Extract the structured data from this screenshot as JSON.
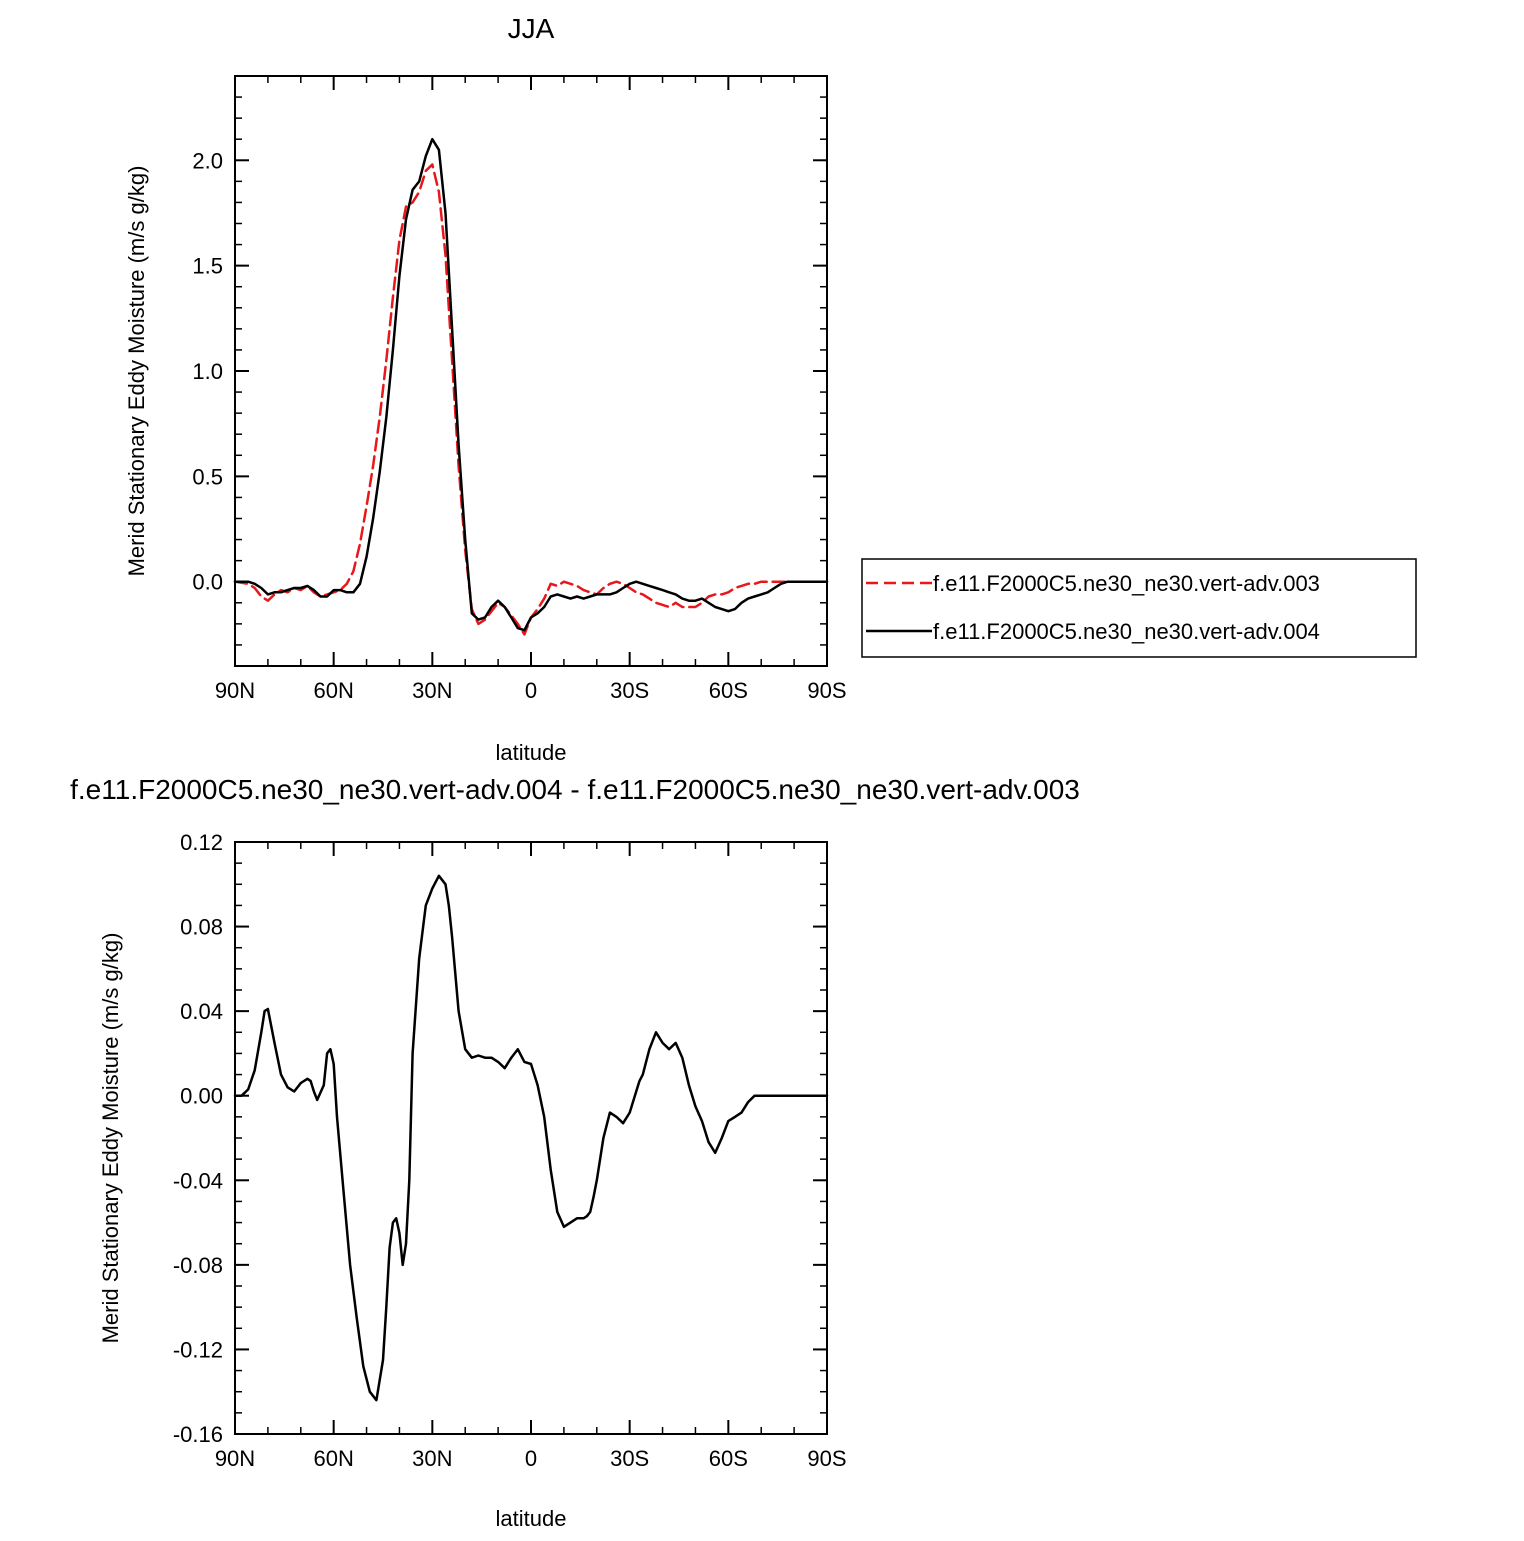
{
  "chart_data": [
    {
      "type": "line",
      "title": "JJA",
      "xlabel": "latitude",
      "ylabel": "Merid Stationary Eddy Moisture (m/s g/kg)",
      "xlim": [
        90,
        -90
      ],
      "ylim": [
        -0.4,
        2.4
      ],
      "xticks": [
        {
          "value": 90,
          "label": "90N"
        },
        {
          "value": 60,
          "label": "60N"
        },
        {
          "value": 30,
          "label": "30N"
        },
        {
          "value": 0,
          "label": "0"
        },
        {
          "value": -30,
          "label": "30S"
        },
        {
          "value": -60,
          "label": "60S"
        },
        {
          "value": -90,
          "label": "90S"
        }
      ],
      "yticks": [
        {
          "value": 0.0,
          "label": "0.0"
        },
        {
          "value": 0.5,
          "label": "0.5"
        },
        {
          "value": 1.0,
          "label": "1.0"
        },
        {
          "value": 1.5,
          "label": "1.5"
        },
        {
          "value": 2.0,
          "label": "2.0"
        }
      ],
      "legend": "right",
      "series": [
        {
          "name": "f.e11.F2000C5.ne30_ne30.vert-adv.003",
          "color": "#e8171b",
          "dash": "dashed",
          "x": [
            90,
            86,
            84,
            82,
            80,
            78,
            76,
            74,
            72,
            70,
            68,
            66,
            64,
            62,
            60,
            58,
            56,
            54,
            52,
            50,
            48,
            46,
            44,
            42,
            40,
            38,
            36,
            34,
            32,
            30,
            28,
            26,
            24,
            22,
            20,
            18,
            16,
            14,
            12,
            10,
            8,
            6,
            4,
            2,
            0,
            -2,
            -4,
            -6,
            -8,
            -10,
            -12,
            -14,
            -16,
            -18,
            -20,
            -22,
            -24,
            -26,
            -28,
            -30,
            -32,
            -34,
            -36,
            -38,
            -40,
            -42,
            -44,
            -46,
            -48,
            -50,
            -52,
            -54,
            -56,
            -58,
            -60,
            -62,
            -64,
            -66,
            -68,
            -70,
            -72,
            -74,
            -76,
            -78,
            -80,
            -82,
            -84,
            -86,
            -88,
            -90
          ],
          "y": [
            0.0,
            -0.01,
            -0.03,
            -0.07,
            -0.09,
            -0.06,
            -0.04,
            -0.05,
            -0.03,
            -0.04,
            -0.02,
            -0.05,
            -0.07,
            -0.06,
            -0.05,
            -0.04,
            -0.01,
            0.05,
            0.18,
            0.36,
            0.55,
            0.78,
            1.05,
            1.35,
            1.62,
            1.78,
            1.8,
            1.85,
            1.95,
            1.98,
            1.85,
            1.55,
            1.05,
            0.55,
            0.15,
            -0.13,
            -0.2,
            -0.18,
            -0.14,
            -0.1,
            -0.12,
            -0.16,
            -0.2,
            -0.25,
            -0.17,
            -0.13,
            -0.08,
            -0.01,
            -0.02,
            0.0,
            -0.01,
            -0.02,
            -0.04,
            -0.05,
            -0.06,
            -0.03,
            -0.01,
            0.0,
            -0.01,
            -0.03,
            -0.05,
            -0.06,
            -0.08,
            -0.1,
            -0.11,
            -0.12,
            -0.1,
            -0.12,
            -0.12,
            -0.12,
            -0.1,
            -0.07,
            -0.06,
            -0.06,
            -0.05,
            -0.03,
            -0.02,
            -0.01,
            -0.01,
            0.0,
            0.0,
            0.0,
            0.0,
            0.0,
            0.0,
            0.0,
            0.0,
            0.0,
            0.0,
            0.0
          ]
        },
        {
          "name": "f.e11.F2000C5.ne30_ne30.vert-adv.004",
          "color": "#000000",
          "dash": "solid",
          "x": [
            90,
            86,
            84,
            82,
            80,
            78,
            76,
            74,
            72,
            70,
            68,
            66,
            64,
            62,
            60,
            58,
            56,
            54,
            52,
            50,
            48,
            46,
            44,
            42,
            40,
            38,
            36,
            34,
            32,
            30,
            28,
            26,
            24,
            22,
            20,
            18,
            16,
            14,
            12,
            10,
            8,
            6,
            4,
            2,
            0,
            -2,
            -4,
            -6,
            -8,
            -10,
            -12,
            -14,
            -16,
            -18,
            -20,
            -22,
            -24,
            -26,
            -28,
            -30,
            -32,
            -34,
            -36,
            -38,
            -40,
            -42,
            -44,
            -46,
            -48,
            -50,
            -52,
            -54,
            -56,
            -58,
            -60,
            -62,
            -64,
            -66,
            -68,
            -70,
            -72,
            -74,
            -76,
            -78,
            -80,
            -82,
            -84,
            -86,
            -88,
            -90
          ],
          "y": [
            0.0,
            0.0,
            -0.01,
            -0.03,
            -0.06,
            -0.05,
            -0.05,
            -0.04,
            -0.03,
            -0.03,
            -0.02,
            -0.04,
            -0.07,
            -0.07,
            -0.04,
            -0.04,
            -0.05,
            -0.05,
            -0.01,
            0.12,
            0.3,
            0.52,
            0.78,
            1.1,
            1.45,
            1.72,
            1.86,
            1.9,
            2.02,
            2.1,
            2.05,
            1.75,
            1.2,
            0.65,
            0.2,
            -0.15,
            -0.18,
            -0.17,
            -0.12,
            -0.09,
            -0.12,
            -0.17,
            -0.22,
            -0.23,
            -0.17,
            -0.15,
            -0.12,
            -0.07,
            -0.06,
            -0.07,
            -0.08,
            -0.07,
            -0.08,
            -0.07,
            -0.06,
            -0.06,
            -0.06,
            -0.05,
            -0.03,
            -0.01,
            0.0,
            -0.01,
            -0.02,
            -0.03,
            -0.04,
            -0.05,
            -0.06,
            -0.08,
            -0.09,
            -0.09,
            -0.08,
            -0.1,
            -0.12,
            -0.13,
            -0.14,
            -0.13,
            -0.1,
            -0.08,
            -0.07,
            -0.06,
            -0.05,
            -0.03,
            -0.01,
            0.0,
            0.0,
            0.0,
            0.0,
            0.0,
            0.0,
            0.0
          ]
        }
      ]
    },
    {
      "type": "line",
      "title": "f.e11.F2000C5.ne30_ne30.vert-adv.004 - f.e11.F2000C5.ne30_ne30.vert-adv.003",
      "xlabel": "latitude",
      "ylabel": "Merid Stationary Eddy Moisture (m/s g/kg)",
      "xlim": [
        90,
        -90
      ],
      "ylim": [
        -0.16,
        0.12
      ],
      "xticks": [
        {
          "value": 90,
          "label": "90N"
        },
        {
          "value": 60,
          "label": "60N"
        },
        {
          "value": 30,
          "label": "30N"
        },
        {
          "value": 0,
          "label": "0"
        },
        {
          "value": -30,
          "label": "30S"
        },
        {
          "value": -60,
          "label": "60S"
        },
        {
          "value": -90,
          "label": "90S"
        }
      ],
      "yticks": [
        {
          "value": 0.12,
          "label": "0.12"
        },
        {
          "value": 0.08,
          "label": "0.08"
        },
        {
          "value": 0.04,
          "label": "0.04"
        },
        {
          "value": 0.0,
          "label": "0.00"
        },
        {
          "value": -0.04,
          "label": "-0.04"
        },
        {
          "value": -0.08,
          "label": "-0.08"
        },
        {
          "value": -0.12,
          "label": "-0.12"
        },
        {
          "value": -0.16,
          "label": "-0.16"
        }
      ],
      "series": [
        {
          "color": "#000000",
          "dash": "solid",
          "x": [
            90,
            88,
            86,
            84,
            82,
            81,
            80,
            78,
            76,
            74,
            72,
            70,
            68,
            67,
            66,
            65,
            63,
            62,
            61,
            60,
            59,
            57,
            55,
            53,
            51,
            49,
            47,
            45,
            44,
            43,
            42,
            41,
            40,
            39,
            38,
            37,
            36,
            34,
            32,
            30,
            28,
            26,
            25,
            24,
            22,
            20,
            18,
            16,
            14,
            12,
            10,
            8,
            6,
            4,
            2,
            0,
            -2,
            -4,
            -6,
            -8,
            -10,
            -12,
            -14,
            -16,
            -17,
            -18,
            -19,
            -20,
            -22,
            -24,
            -26,
            -28,
            -30,
            -32,
            -33,
            -34,
            -36,
            -38,
            -40,
            -42,
            -44,
            -46,
            -48,
            -50,
            -52,
            -54,
            -56,
            -58,
            -60,
            -62,
            -64,
            -66,
            -68,
            -70,
            -72,
            -74,
            -75,
            -76,
            -78,
            -80,
            -82,
            -84,
            -86,
            -88,
            -90
          ],
          "y": [
            0.0,
            0.0,
            0.003,
            0.012,
            0.03,
            0.04,
            0.041,
            0.025,
            0.01,
            0.004,
            0.002,
            0.006,
            0.008,
            0.007,
            0.002,
            -0.002,
            0.005,
            0.02,
            0.022,
            0.015,
            -0.01,
            -0.045,
            -0.08,
            -0.105,
            -0.128,
            -0.14,
            -0.144,
            -0.125,
            -0.1,
            -0.072,
            -0.06,
            -0.058,
            -0.065,
            -0.08,
            -0.07,
            -0.04,
            0.02,
            0.065,
            0.09,
            0.098,
            0.104,
            0.1,
            0.09,
            0.075,
            0.04,
            0.022,
            0.018,
            0.019,
            0.018,
            0.018,
            0.016,
            0.013,
            0.018,
            0.022,
            0.016,
            0.015,
            0.005,
            -0.01,
            -0.035,
            -0.055,
            -0.062,
            -0.06,
            -0.058,
            -0.058,
            -0.057,
            -0.055,
            -0.048,
            -0.04,
            -0.02,
            -0.008,
            -0.01,
            -0.013,
            -0.008,
            0.002,
            0.007,
            0.01,
            0.022,
            0.03,
            0.025,
            0.022,
            0.025,
            0.018,
            0.005,
            -0.005,
            -0.012,
            -0.022,
            -0.027,
            -0.02,
            -0.012,
            -0.01,
            -0.008,
            -0.003,
            0.0,
            0.0,
            0.0,
            0.0,
            0.0,
            0.0,
            0.0,
            0.0,
            0.0,
            0.0,
            0.0,
            0.0,
            0.0
          ]
        }
      ]
    }
  ]
}
